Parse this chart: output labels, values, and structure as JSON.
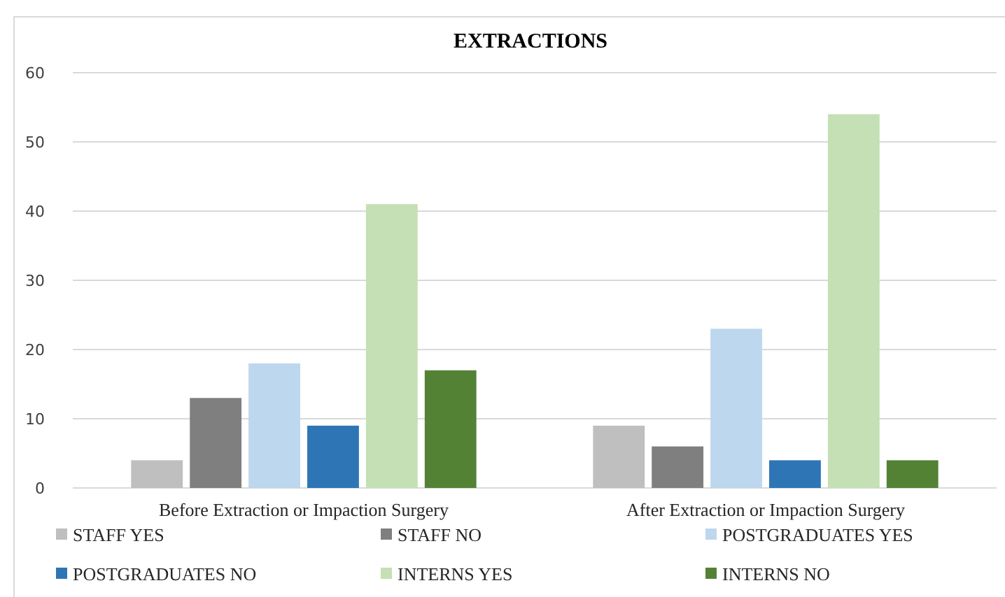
{
  "chart_data": {
    "type": "bar",
    "title": "EXTRACTIONS",
    "categories": [
      "Before Extraction or Impaction Surgery",
      "After Extraction or Impaction Surgery"
    ],
    "series": [
      {
        "name": "STAFF YES",
        "color": "#bfbfbf",
        "values": [
          4,
          9
        ]
      },
      {
        "name": "STAFF NO",
        "color": "#7f7f7f",
        "values": [
          13,
          6
        ]
      },
      {
        "name": "POSTGRADUATES YES",
        "color": "#bdd7ee",
        "values": [
          18,
          23
        ]
      },
      {
        "name": "POSTGRADUATES NO",
        "color": "#2e75b6",
        "values": [
          9,
          4
        ]
      },
      {
        "name": "INTERNS YES",
        "color": "#c5e0b4",
        "values": [
          41,
          54
        ]
      },
      {
        "name": "INTERNS NO",
        "color": "#548235",
        "values": [
          17,
          4
        ]
      }
    ],
    "ylim": [
      0,
      60
    ],
    "yticks": [
      0,
      10,
      20,
      30,
      40,
      50,
      60
    ],
    "grid": "y",
    "legend": "bottom"
  }
}
